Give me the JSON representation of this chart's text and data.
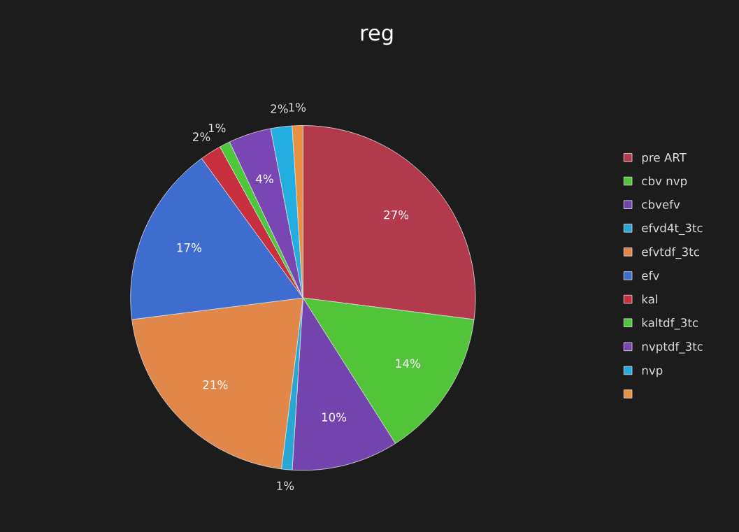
{
  "chart_data": {
    "type": "pie",
    "title": "reg",
    "categories": [
      "pre ART",
      "cbv nvp",
      "cbvefv",
      "efvd4t_3tc",
      "efvtdf_3tc",
      "efv",
      "kal",
      "kaltdf_3tc",
      "nvptdf_3tc",
      "nvp",
      null
    ],
    "values": [
      27,
      14,
      10,
      1,
      21,
      17,
      2,
      1,
      4,
      2,
      1
    ],
    "value_labels": [
      "27%",
      "14%",
      "10%",
      "1%",
      "21%",
      "17%",
      "2%",
      "1%",
      "4%",
      "2%",
      "1%"
    ],
    "colors": [
      "#b23a4c",
      "#52c43a",
      "#7444ae",
      "#28a6d4",
      "#e2874a",
      "#3e6ccf",
      "#c8303f",
      "#4cc83a",
      "#7a46b4",
      "#22aee0",
      "#e89040"
    ],
    "legend": "right"
  }
}
